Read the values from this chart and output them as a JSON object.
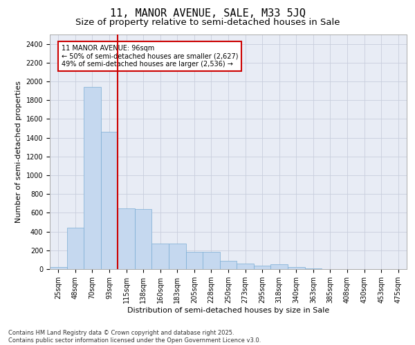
{
  "title": "11, MANOR AVENUE, SALE, M33 5JQ",
  "subtitle": "Size of property relative to semi-detached houses in Sale",
  "xlabel": "Distribution of semi-detached houses by size in Sale",
  "ylabel": "Number of semi-detached properties",
  "footer": "Contains HM Land Registry data © Crown copyright and database right 2025.\nContains public sector information licensed under the Open Government Licence v3.0.",
  "categories": [
    "25sqm",
    "48sqm",
    "70sqm",
    "93sqm",
    "115sqm",
    "138sqm",
    "160sqm",
    "183sqm",
    "205sqm",
    "228sqm",
    "250sqm",
    "273sqm",
    "295sqm",
    "318sqm",
    "340sqm",
    "363sqm",
    "385sqm",
    "408sqm",
    "430sqm",
    "453sqm",
    "475sqm"
  ],
  "values": [
    25,
    440,
    1940,
    1460,
    650,
    640,
    270,
    270,
    185,
    185,
    90,
    60,
    40,
    50,
    20,
    5,
    2,
    0,
    0,
    0,
    0
  ],
  "bar_color": "#c5d8ef",
  "bar_edge_color": "#7aadd4",
  "vline_color": "#cc0000",
  "property_label": "11 MANOR AVENUE: 96sqm",
  "smaller_pct": 50,
  "smaller_count": 2627,
  "larger_pct": 49,
  "larger_count": 2536,
  "annotation_box_color": "#cc0000",
  "ylim": [
    0,
    2500
  ],
  "yticks": [
    0,
    200,
    400,
    600,
    800,
    1000,
    1200,
    1400,
    1600,
    1800,
    2000,
    2200,
    2400
  ],
  "grid_color": "#c8cedd",
  "bg_color": "#e8ecf5",
  "title_fontsize": 11,
  "subtitle_fontsize": 9.5,
  "tick_fontsize": 7,
  "label_fontsize": 8,
  "footer_fontsize": 6
}
